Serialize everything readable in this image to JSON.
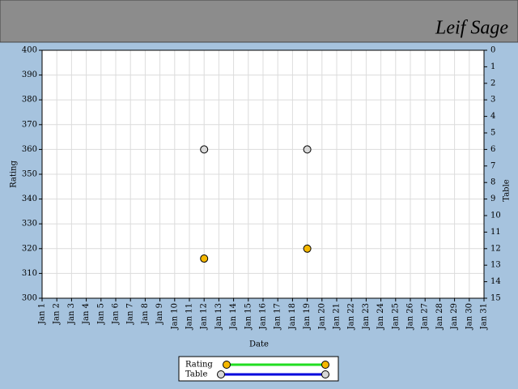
{
  "header": {
    "user": "Leif Sage"
  },
  "chart_data": {
    "type": "line",
    "x_label": "Date",
    "y_label": "Rating",
    "y2_label": "Table",
    "categories": [
      "Jan 1",
      "Jan 2",
      "Jan 3",
      "Jan 4",
      "Jan 5",
      "Jan 6",
      "Jan 7",
      "Jan 8",
      "Jan 9",
      "Jan 10",
      "Jan 11",
      "Jan 12",
      "Jan 13",
      "Jan 14",
      "Jan 15",
      "Jan 16",
      "Jan 17",
      "Jan 18",
      "Jan 19",
      "Jan 20",
      "Jan 21",
      "Jan 22",
      "Jan 23",
      "Jan 24",
      "Jan 25",
      "Jan 26",
      "Jan 27",
      "Jan 28",
      "Jan 29",
      "Jan 30",
      "Jan 31"
    ],
    "series": [
      {
        "name": "Rating",
        "color": "#22dd22",
        "marker_color": "#f5b800",
        "values": [
          null,
          null,
          null,
          null,
          null,
          null,
          null,
          null,
          null,
          null,
          null,
          316,
          null,
          null,
          null,
          null,
          null,
          null,
          320,
          null,
          null,
          null,
          null,
          null,
          null,
          null,
          null,
          null,
          null,
          null,
          null
        ]
      },
      {
        "name": "Table",
        "color": "#0000dd",
        "marker_color": "#d8d8d8",
        "axis": "y2",
        "values": [
          null,
          null,
          null,
          null,
          null,
          null,
          null,
          null,
          null,
          null,
          null,
          6,
          null,
          null,
          null,
          null,
          null,
          null,
          6,
          null,
          null,
          null,
          null,
          null,
          null,
          null,
          null,
          null,
          null,
          null,
          null
        ]
      }
    ],
    "ylim": [
      300,
      400
    ],
    "yticks": [
      300,
      310,
      320,
      330,
      340,
      350,
      360,
      370,
      380,
      390,
      400
    ],
    "y2lim": [
      15,
      0
    ],
    "y2ticks": [
      0,
      1,
      2,
      3,
      4,
      5,
      6,
      7,
      8,
      9,
      10,
      11,
      12,
      13,
      14,
      15
    ],
    "grid": true
  }
}
